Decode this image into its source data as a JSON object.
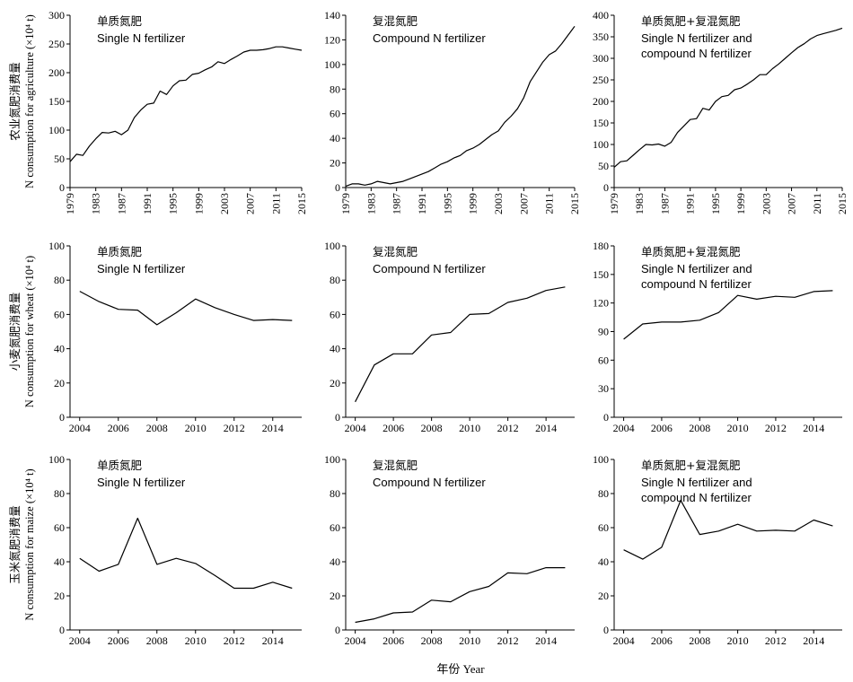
{
  "x_label": "年份 Year",
  "row_ylabels": [
    {
      "cn": "农业氮肥消费量",
      "en": "N consumption for agriculture (×10⁴ t)"
    },
    {
      "cn": "小麦氮肥消费量",
      "en": "N consumption for wheat (×10⁴ t)"
    },
    {
      "cn": "玉米氮肥消费量",
      "en": "N consumption for maize (×10⁴ t)"
    }
  ],
  "chart_data": [
    {
      "type": "line",
      "row": 0,
      "col": 0,
      "title_cn": "单质氮肥",
      "title_en": [
        "Single N fertilizer"
      ],
      "x": [
        1979,
        1980,
        1981,
        1982,
        1983,
        1984,
        1985,
        1986,
        1987,
        1988,
        1989,
        1990,
        1991,
        1992,
        1993,
        1994,
        1995,
        1996,
        1997,
        1998,
        1999,
        2000,
        2001,
        2002,
        2003,
        2004,
        2005,
        2006,
        2007,
        2008,
        2009,
        2010,
        2011,
        2012,
        2013,
        2014,
        2015
      ],
      "values": [
        45,
        58,
        56,
        72,
        85,
        96,
        95,
        98,
        92,
        100,
        122,
        135,
        145,
        147,
        168,
        162,
        177,
        186,
        187,
        197,
        199,
        205,
        210,
        219,
        216,
        223,
        229,
        236,
        239,
        239,
        240,
        242,
        245,
        245,
        243,
        241,
        239
      ],
      "xlim": [
        1979,
        2015
      ],
      "ylim": [
        0,
        300
      ],
      "xticks": [
        1979,
        1983,
        1987,
        1991,
        1995,
        1999,
        2003,
        2007,
        2011,
        2015
      ],
      "yticks": [
        0,
        50,
        100,
        150,
        200,
        250,
        300
      ]
    },
    {
      "type": "line",
      "row": 0,
      "col": 1,
      "title_cn": "复混氮肥",
      "title_en": [
        "Compound N fertilizer"
      ],
      "x": [
        1979,
        1980,
        1981,
        1982,
        1983,
        1984,
        1985,
        1986,
        1987,
        1988,
        1989,
        1990,
        1991,
        1992,
        1993,
        1994,
        1995,
        1996,
        1997,
        1998,
        1999,
        2000,
        2001,
        2002,
        2003,
        2004,
        2005,
        2006,
        2007,
        2008,
        2009,
        2010,
        2011,
        2012,
        2013,
        2014,
        2015
      ],
      "values": [
        1,
        3,
        3,
        2,
        3,
        5,
        4,
        3,
        4,
        5,
        7,
        9,
        11,
        13,
        16,
        19,
        21,
        24,
        26,
        30,
        32,
        35,
        39,
        43,
        46,
        53,
        58,
        64,
        73,
        86,
        94,
        102,
        108,
        111,
        117,
        124,
        131
      ],
      "xlim": [
        1979,
        2015
      ],
      "ylim": [
        0,
        140
      ],
      "xticks": [
        1979,
        1983,
        1987,
        1991,
        1995,
        1999,
        2003,
        2007,
        2011,
        2015
      ],
      "yticks": [
        0,
        20,
        40,
        60,
        80,
        100,
        120,
        140
      ]
    },
    {
      "type": "line",
      "row": 0,
      "col": 2,
      "title_cn": "单质氮肥+复混氮肥",
      "title_en": [
        "Single N fertilizer and",
        "compound N fertilizer"
      ],
      "x": [
        1979,
        1980,
        1981,
        1982,
        1983,
        1984,
        1985,
        1986,
        1987,
        1988,
        1989,
        1990,
        1991,
        1992,
        1993,
        1994,
        1995,
        1996,
        1997,
        1998,
        1999,
        2000,
        2001,
        2002,
        2003,
        2004,
        2005,
        2006,
        2007,
        2008,
        2009,
        2010,
        2011,
        2012,
        2013,
        2014,
        2015
      ],
      "values": [
        47,
        60,
        62,
        75,
        88,
        100,
        99,
        101,
        96,
        105,
        128,
        143,
        158,
        160,
        184,
        180,
        200,
        211,
        214,
        227,
        231,
        240,
        250,
        262,
        262,
        276,
        287,
        300,
        313,
        325,
        334,
        345,
        353,
        357,
        361,
        365,
        370
      ],
      "xlim": [
        1979,
        2015
      ],
      "ylim": [
        0,
        400
      ],
      "xticks": [
        1979,
        1983,
        1987,
        1991,
        1995,
        1999,
        2003,
        2007,
        2011,
        2015
      ],
      "yticks": [
        0,
        50,
        100,
        150,
        200,
        250,
        300,
        350,
        400
      ]
    },
    {
      "type": "line",
      "row": 1,
      "col": 0,
      "title_cn": "单质氮肥",
      "title_en": [
        "Single N fertilizer"
      ],
      "x": [
        2004,
        2005,
        2006,
        2007,
        2008,
        2009,
        2010,
        2011,
        2012,
        2013,
        2014,
        2015
      ],
      "values": [
        73.5,
        67.5,
        63,
        62.5,
        54,
        61,
        69,
        64,
        60,
        56.5,
        57,
        56.5
      ],
      "xlim": [
        2003.5,
        2015.5
      ],
      "ylim": [
        0,
        100
      ],
      "xticks": [
        2004,
        2006,
        2008,
        2010,
        2012,
        2014
      ],
      "yticks": [
        0,
        20,
        40,
        60,
        80,
        100
      ]
    },
    {
      "type": "line",
      "row": 1,
      "col": 1,
      "title_cn": "复混氮肥",
      "title_en": [
        "Compound N fertilizer"
      ],
      "x": [
        2004,
        2005,
        2006,
        2007,
        2008,
        2009,
        2010,
        2011,
        2012,
        2013,
        2014,
        2015
      ],
      "values": [
        9,
        30.5,
        37,
        37,
        48,
        49.5,
        60,
        60.5,
        67,
        69.5,
        74,
        76
      ],
      "xlim": [
        2003.5,
        2015.5
      ],
      "ylim": [
        0,
        100
      ],
      "xticks": [
        2004,
        2006,
        2008,
        2010,
        2012,
        2014
      ],
      "yticks": [
        0,
        20,
        40,
        60,
        80,
        100
      ]
    },
    {
      "type": "line",
      "row": 1,
      "col": 2,
      "title_cn": "单质氮肥+复混氮肥",
      "title_en": [
        "Single N fertilizer and",
        "compound N fertilizer"
      ],
      "x": [
        2004,
        2005,
        2006,
        2007,
        2008,
        2009,
        2010,
        2011,
        2012,
        2013,
        2014,
        2015
      ],
      "values": [
        82,
        98,
        100,
        100,
        102,
        110,
        128,
        124,
        127,
        126,
        132,
        133
      ],
      "xlim": [
        2003.5,
        2015.5
      ],
      "ylim": [
        0,
        180
      ],
      "xticks": [
        2004,
        2006,
        2008,
        2010,
        2012,
        2014
      ],
      "yticks": [
        0,
        30,
        60,
        90,
        120,
        150,
        180
      ]
    },
    {
      "type": "line",
      "row": 2,
      "col": 0,
      "title_cn": "单质氮肥",
      "title_en": [
        "Single N fertilizer"
      ],
      "x": [
        2004,
        2005,
        2006,
        2007,
        2008,
        2009,
        2010,
        2011,
        2012,
        2013,
        2014,
        2015
      ],
      "values": [
        42,
        34.5,
        38.5,
        65.5,
        38.5,
        42,
        39,
        32,
        24.5,
        24.5,
        28,
        24.5
      ],
      "xlim": [
        2003.5,
        2015.5
      ],
      "ylim": [
        0,
        100
      ],
      "xticks": [
        2004,
        2006,
        2008,
        2010,
        2012,
        2014
      ],
      "yticks": [
        0,
        20,
        40,
        60,
        80,
        100
      ]
    },
    {
      "type": "line",
      "row": 2,
      "col": 1,
      "title_cn": "复混氮肥",
      "title_en": [
        "Compound N fertilizer"
      ],
      "x": [
        2004,
        2005,
        2006,
        2007,
        2008,
        2009,
        2010,
        2011,
        2012,
        2013,
        2014,
        2015
      ],
      "values": [
        4.5,
        6.5,
        10,
        10.5,
        17.5,
        16.5,
        22.5,
        25.5,
        33.5,
        33,
        36.5,
        36.5
      ],
      "xlim": [
        2003.5,
        2015.5
      ],
      "ylim": [
        0,
        100
      ],
      "xticks": [
        2004,
        2006,
        2008,
        2010,
        2012,
        2014
      ],
      "yticks": [
        0,
        20,
        40,
        60,
        80,
        100
      ]
    },
    {
      "type": "line",
      "row": 2,
      "col": 2,
      "title_cn": "单质氮肥+复混氮肥",
      "title_en": [
        "Single N fertilizer and",
        "compound N fertilizer"
      ],
      "x": [
        2004,
        2005,
        2006,
        2007,
        2008,
        2009,
        2010,
        2011,
        2012,
        2013,
        2014,
        2015
      ],
      "values": [
        47,
        41.5,
        48.5,
        76,
        56,
        58,
        62,
        58,
        58.5,
        58,
        64.5,
        61
      ],
      "xlim": [
        2003.5,
        2015.5
      ],
      "ylim": [
        0,
        100
      ],
      "xticks": [
        2004,
        2006,
        2008,
        2010,
        2012,
        2014
      ],
      "yticks": [
        0,
        20,
        40,
        60,
        80,
        100
      ]
    }
  ]
}
